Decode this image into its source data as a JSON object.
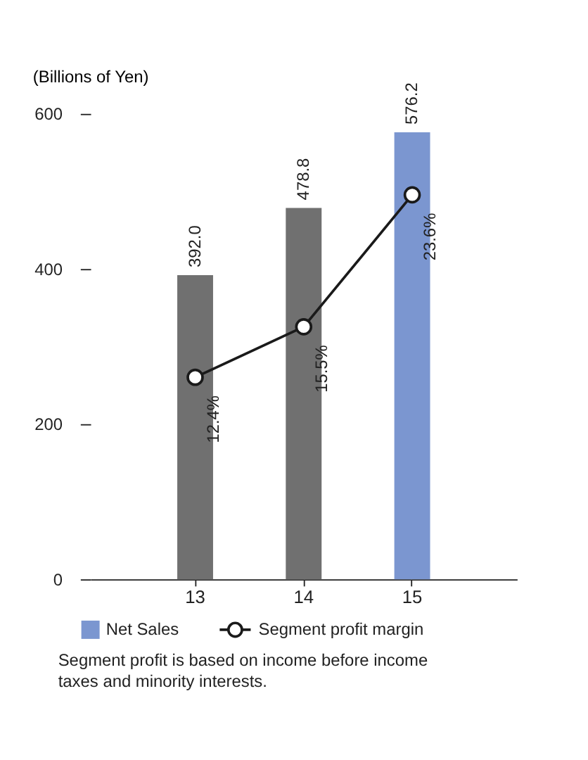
{
  "chart_data": {
    "type": "bar",
    "ylabel": "(Billions of Yen)",
    "categories": [
      "13",
      "14",
      "15"
    ],
    "series": [
      {
        "name": "Net Sales",
        "colors": [
          "#707070",
          "#707070",
          "#7b96d0"
        ],
        "color": "#7b96d0",
        "values": [
          392.0,
          478.8,
          576.2
        ],
        "value_labels": [
          "392.0",
          "478.8",
          "576.2"
        ]
      },
      {
        "name": "Segment profit margin",
        "type": "line",
        "axis": "y2",
        "color": "#1a1a1a",
        "marker": "circle",
        "values": [
          12.4,
          15.5,
          23.6
        ],
        "value_labels": [
          "12.4%",
          "15.5%",
          "23.6%"
        ]
      }
    ],
    "ylim": [
      0,
      600
    ],
    "yticks": [
      0,
      200,
      400,
      600
    ],
    "grid": false,
    "legend": "bottom",
    "annotations": [
      "Segment profit is based on income before income taxes and minority interests."
    ]
  }
}
